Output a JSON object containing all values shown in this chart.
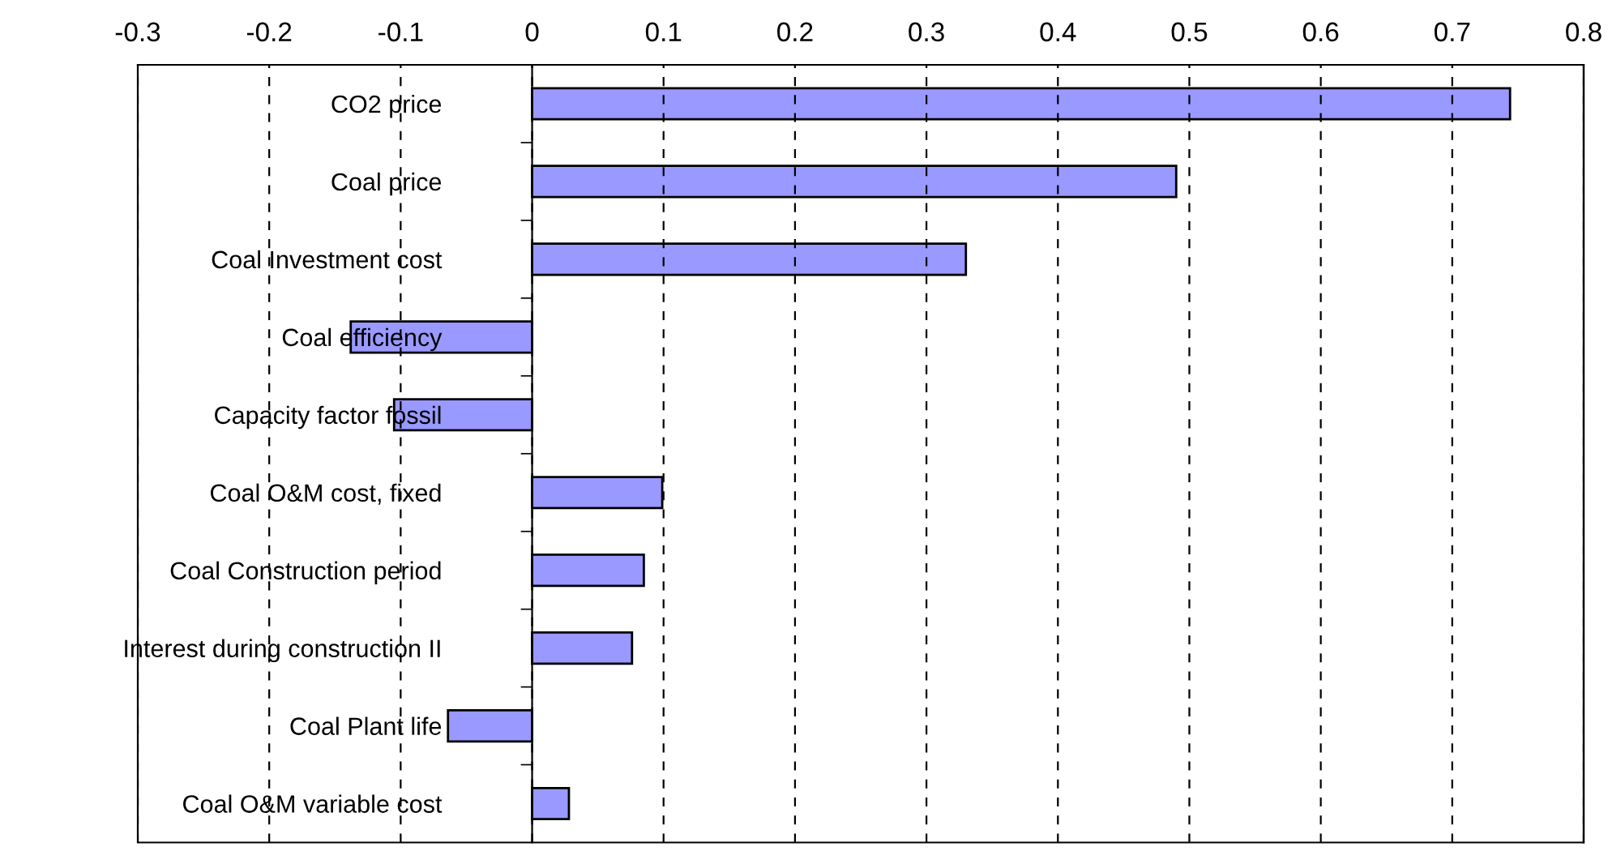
{
  "chart_data": {
    "type": "bar",
    "orientation": "horizontal",
    "categories": [
      "CO2 price",
      "Coal price",
      "Coal Investment cost",
      "Coal efficiency",
      "Capacity factor fossil",
      "Coal O&M cost, fixed",
      "Coal Construction period",
      "Interest during construction II",
      "Coal Plant life",
      "Coal O&M variable cost"
    ],
    "values": [
      0.744,
      0.49,
      0.33,
      -0.138,
      -0.105,
      0.099,
      0.085,
      0.076,
      -0.064,
      0.028
    ],
    "color": "#9999ff",
    "xlim": [
      -0.3,
      0.8
    ],
    "xticks": [
      -0.3,
      -0.2,
      -0.1,
      0,
      0.1,
      0.2,
      0.3,
      0.4,
      0.5,
      0.6,
      0.7,
      0.8
    ],
    "grid": "x",
    "line_style": "dashed"
  }
}
